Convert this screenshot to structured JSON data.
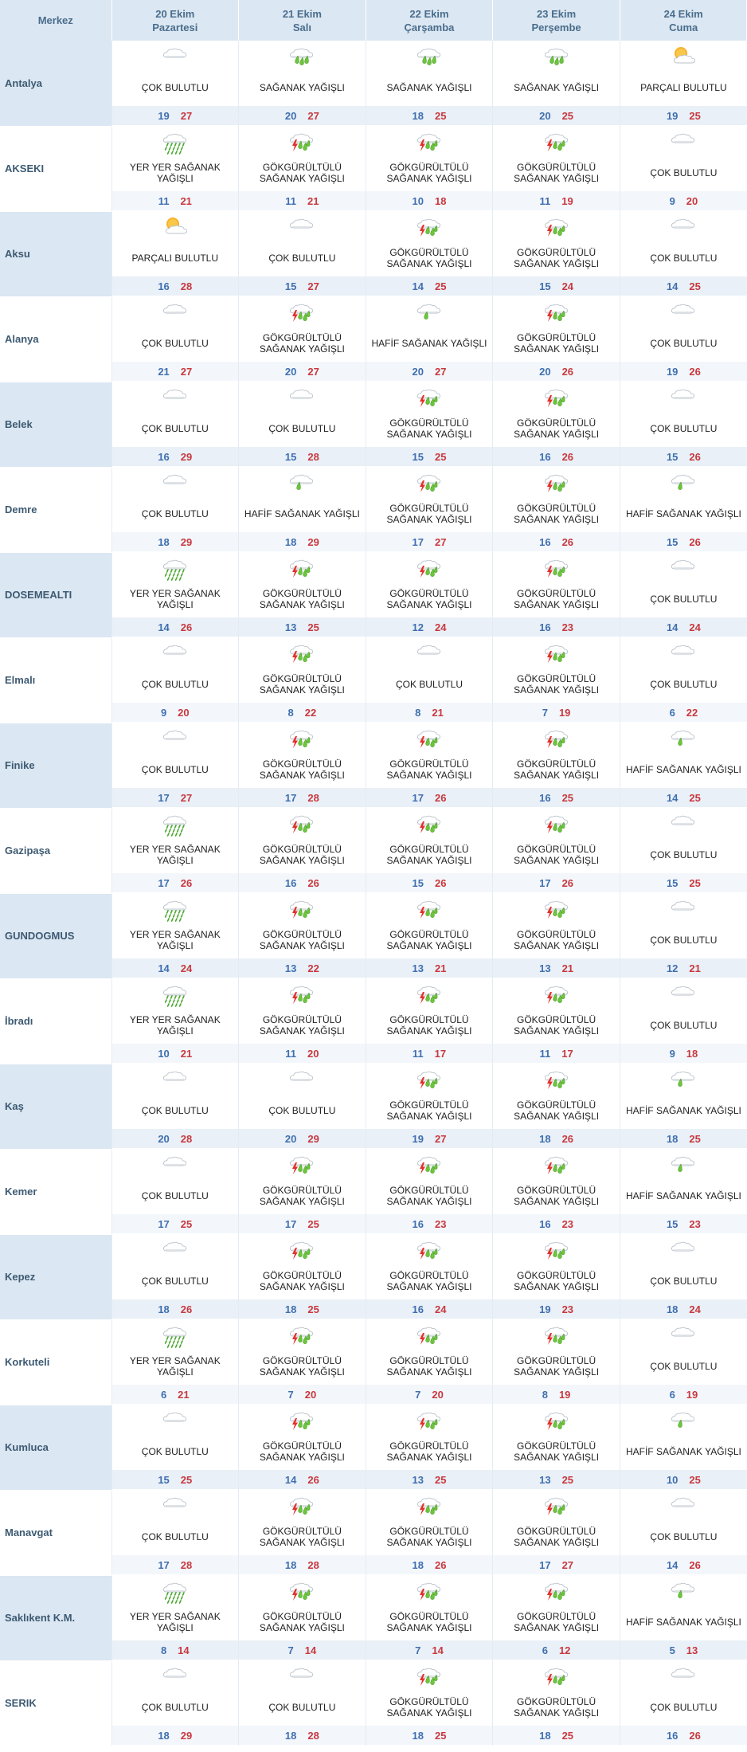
{
  "header": {
    "corner_label": "Merkez",
    "days": [
      {
        "date": "20 Ekim",
        "weekday": "Pazartesi"
      },
      {
        "date": "21 Ekim",
        "weekday": "Salı"
      },
      {
        "date": "22 Ekim",
        "weekday": "Çarşamba"
      },
      {
        "date": "23 Ekim",
        "weekday": "Perşembe"
      },
      {
        "date": "24 Ekim",
        "weekday": "Cuma"
      }
    ]
  },
  "conditions": {
    "CB": {
      "label": "ÇOK BULUTLU",
      "icon": "cloud-icon"
    },
    "SY": {
      "label": "SAĞANAK YAĞIŞLI",
      "icon": "shower-icon"
    },
    "PB": {
      "label": "PARÇALI BULUTLU",
      "icon": "sun-cloud-icon"
    },
    "YY": {
      "label": "YER YER SAĞANAK YAĞIŞLI",
      "icon": "rain-icon"
    },
    "GS": {
      "label": "GÖKGÜRÜLTÜLÜ SAĞANAK YAĞIŞLI",
      "icon": "thunderstorm-icon"
    },
    "HS": {
      "label": "HAFİF SAĞANAK YAĞIŞLI",
      "icon": "light-shower-icon"
    }
  },
  "rows": [
    {
      "city": "Antalya",
      "days": [
        {
          "c": "CB",
          "min": 19,
          "max": 27
        },
        {
          "c": "SY",
          "min": 20,
          "max": 27
        },
        {
          "c": "SY",
          "min": 18,
          "max": 25
        },
        {
          "c": "SY",
          "min": 20,
          "max": 25
        },
        {
          "c": "PB",
          "min": 19,
          "max": 25
        }
      ]
    },
    {
      "city": "AKSEKI",
      "days": [
        {
          "c": "YY",
          "min": 11,
          "max": 21
        },
        {
          "c": "GS",
          "min": 11,
          "max": 21
        },
        {
          "c": "GS",
          "min": 10,
          "max": 18
        },
        {
          "c": "GS",
          "min": 11,
          "max": 19
        },
        {
          "c": "CB",
          "min": 9,
          "max": 20
        }
      ]
    },
    {
      "city": "Aksu",
      "days": [
        {
          "c": "PB",
          "min": 16,
          "max": 28
        },
        {
          "c": "CB",
          "min": 15,
          "max": 27
        },
        {
          "c": "GS",
          "min": 14,
          "max": 25
        },
        {
          "c": "GS",
          "min": 15,
          "max": 24
        },
        {
          "c": "CB",
          "min": 14,
          "max": 25
        }
      ]
    },
    {
      "city": "Alanya",
      "days": [
        {
          "c": "CB",
          "min": 21,
          "max": 27
        },
        {
          "c": "GS",
          "min": 20,
          "max": 27
        },
        {
          "c": "HS",
          "min": 20,
          "max": 27
        },
        {
          "c": "GS",
          "min": 20,
          "max": 26
        },
        {
          "c": "CB",
          "min": 19,
          "max": 26
        }
      ]
    },
    {
      "city": "Belek",
      "days": [
        {
          "c": "CB",
          "min": 16,
          "max": 29
        },
        {
          "c": "CB",
          "min": 15,
          "max": 28
        },
        {
          "c": "GS",
          "min": 15,
          "max": 25
        },
        {
          "c": "GS",
          "min": 16,
          "max": 26
        },
        {
          "c": "CB",
          "min": 15,
          "max": 26
        }
      ]
    },
    {
      "city": "Demre",
      "days": [
        {
          "c": "CB",
          "min": 18,
          "max": 29
        },
        {
          "c": "HS",
          "min": 18,
          "max": 29
        },
        {
          "c": "GS",
          "min": 17,
          "max": 27
        },
        {
          "c": "GS",
          "min": 16,
          "max": 26
        },
        {
          "c": "HS",
          "min": 15,
          "max": 26
        }
      ]
    },
    {
      "city": "DOSEMEALTI",
      "days": [
        {
          "c": "YY",
          "min": 14,
          "max": 26
        },
        {
          "c": "GS",
          "min": 13,
          "max": 25
        },
        {
          "c": "GS",
          "min": 12,
          "max": 24
        },
        {
          "c": "GS",
          "min": 16,
          "max": 23
        },
        {
          "c": "CB",
          "min": 14,
          "max": 24
        }
      ]
    },
    {
      "city": "Elmalı",
      "days": [
        {
          "c": "CB",
          "min": 9,
          "max": 20
        },
        {
          "c": "GS",
          "min": 8,
          "max": 22
        },
        {
          "c": "CB",
          "min": 8,
          "max": 21
        },
        {
          "c": "GS",
          "min": 7,
          "max": 19
        },
        {
          "c": "CB",
          "min": 6,
          "max": 22
        }
      ]
    },
    {
      "city": "Finike",
      "days": [
        {
          "c": "CB",
          "min": 17,
          "max": 27
        },
        {
          "c": "GS",
          "min": 17,
          "max": 28
        },
        {
          "c": "GS",
          "min": 17,
          "max": 26
        },
        {
          "c": "GS",
          "min": 16,
          "max": 25
        },
        {
          "c": "HS",
          "min": 14,
          "max": 25
        }
      ]
    },
    {
      "city": "Gazipaşa",
      "days": [
        {
          "c": "YY",
          "min": 17,
          "max": 26
        },
        {
          "c": "GS",
          "min": 16,
          "max": 26
        },
        {
          "c": "GS",
          "min": 15,
          "max": 26
        },
        {
          "c": "GS",
          "min": 17,
          "max": 26
        },
        {
          "c": "CB",
          "min": 15,
          "max": 25
        }
      ]
    },
    {
      "city": "GUNDOGMUS",
      "days": [
        {
          "c": "YY",
          "min": 14,
          "max": 24
        },
        {
          "c": "GS",
          "min": 13,
          "max": 22
        },
        {
          "c": "GS",
          "min": 13,
          "max": 21
        },
        {
          "c": "GS",
          "min": 13,
          "max": 21
        },
        {
          "c": "CB",
          "min": 12,
          "max": 21
        }
      ]
    },
    {
      "city": "İbradı",
      "days": [
        {
          "c": "YY",
          "min": 10,
          "max": 21
        },
        {
          "c": "GS",
          "min": 11,
          "max": 20
        },
        {
          "c": "GS",
          "min": 11,
          "max": 17
        },
        {
          "c": "GS",
          "min": 11,
          "max": 17
        },
        {
          "c": "CB",
          "min": 9,
          "max": 18
        }
      ]
    },
    {
      "city": "Kaş",
      "days": [
        {
          "c": "CB",
          "min": 20,
          "max": 28
        },
        {
          "c": "CB",
          "min": 20,
          "max": 29
        },
        {
          "c": "GS",
          "min": 19,
          "max": 27
        },
        {
          "c": "GS",
          "min": 18,
          "max": 26
        },
        {
          "c": "HS",
          "min": 18,
          "max": 25
        }
      ]
    },
    {
      "city": "Kemer",
      "days": [
        {
          "c": "CB",
          "min": 17,
          "max": 25
        },
        {
          "c": "GS",
          "min": 17,
          "max": 25
        },
        {
          "c": "GS",
          "min": 16,
          "max": 23
        },
        {
          "c": "GS",
          "min": 16,
          "max": 23
        },
        {
          "c": "HS",
          "min": 15,
          "max": 23
        }
      ]
    },
    {
      "city": "Kepez",
      "days": [
        {
          "c": "CB",
          "min": 18,
          "max": 26
        },
        {
          "c": "GS",
          "min": 18,
          "max": 25
        },
        {
          "c": "GS",
          "min": 16,
          "max": 24
        },
        {
          "c": "GS",
          "min": 19,
          "max": 23
        },
        {
          "c": "CB",
          "min": 18,
          "max": 24
        }
      ]
    },
    {
      "city": "Korkuteli",
      "days": [
        {
          "c": "YY",
          "min": 6,
          "max": 21
        },
        {
          "c": "GS",
          "min": 7,
          "max": 20
        },
        {
          "c": "GS",
          "min": 7,
          "max": 20
        },
        {
          "c": "GS",
          "min": 8,
          "max": 19
        },
        {
          "c": "CB",
          "min": 6,
          "max": 19
        }
      ]
    },
    {
      "city": "Kumluca",
      "days": [
        {
          "c": "CB",
          "min": 15,
          "max": 25
        },
        {
          "c": "GS",
          "min": 14,
          "max": 26
        },
        {
          "c": "GS",
          "min": 13,
          "max": 25
        },
        {
          "c": "GS",
          "min": 13,
          "max": 25
        },
        {
          "c": "HS",
          "min": 10,
          "max": 25
        }
      ]
    },
    {
      "city": "Manavgat",
      "days": [
        {
          "c": "CB",
          "min": 17,
          "max": 28
        },
        {
          "c": "GS",
          "min": 18,
          "max": 28
        },
        {
          "c": "GS",
          "min": 18,
          "max": 26
        },
        {
          "c": "GS",
          "min": 17,
          "max": 27
        },
        {
          "c": "CB",
          "min": 14,
          "max": 26
        }
      ]
    },
    {
      "city": "Saklıkent K.M.",
      "days": [
        {
          "c": "YY",
          "min": 8,
          "max": 14
        },
        {
          "c": "GS",
          "min": 7,
          "max": 14
        },
        {
          "c": "GS",
          "min": 7,
          "max": 14
        },
        {
          "c": "GS",
          "min": 6,
          "max": 12
        },
        {
          "c": "HS",
          "min": 5,
          "max": 13
        }
      ]
    },
    {
      "city": "SERIK",
      "days": [
        {
          "c": "CB",
          "min": 18,
          "max": 29
        },
        {
          "c": "CB",
          "min": 18,
          "max": 28
        },
        {
          "c": "GS",
          "min": 18,
          "max": 25
        },
        {
          "c": "GS",
          "min": 18,
          "max": 25
        },
        {
          "c": "CB",
          "min": 16,
          "max": 26
        }
      ]
    }
  ]
}
